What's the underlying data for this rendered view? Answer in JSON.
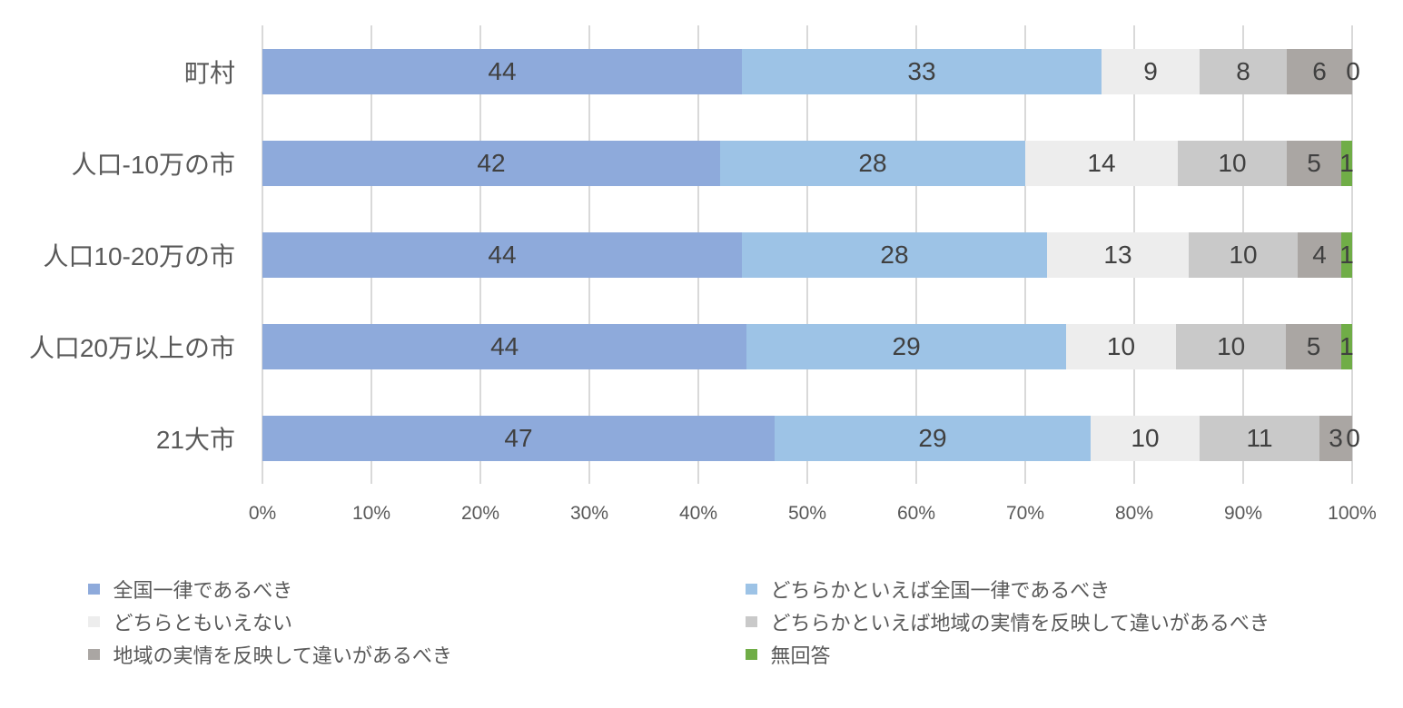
{
  "chart_data": {
    "type": "bar",
    "stacked": true,
    "orientation": "horizontal",
    "unit": "%",
    "categories": [
      "町村",
      "人口-10万の市",
      "人口10-20万の市",
      "人口20万以上の市",
      "21大市"
    ],
    "series": [
      {
        "name": "全国一律であるべき",
        "color": "#8eaadb",
        "values": [
          44,
          42,
          44,
          44,
          47
        ]
      },
      {
        "name": "どちらかといえば全国一律であるべき",
        "color": "#9dc3e6",
        "values": [
          33,
          28,
          28,
          29,
          29
        ]
      },
      {
        "name": "どちらともいえない",
        "color": "#ededed",
        "values": [
          9,
          14,
          13,
          10,
          10
        ]
      },
      {
        "name": "どちらかといえば地域の実情を反映して違いがあるべき",
        "color": "#c9c9c9",
        "values": [
          8,
          10,
          10,
          10,
          11
        ]
      },
      {
        "name": "地域の実情を反映して違いがあるべき",
        "color": "#aaa6a3",
        "values": [
          6,
          5,
          4,
          5,
          3
        ]
      },
      {
        "name": "無回答",
        "color": "#70ad47",
        "values": [
          0,
          1,
          1,
          1,
          0
        ]
      }
    ],
    "x_ticks": [
      "0%",
      "10%",
      "20%",
      "30%",
      "40%",
      "50%",
      "60%",
      "70%",
      "80%",
      "90%",
      "100%"
    ],
    "xlim": [
      0,
      100
    ],
    "grid": true,
    "legend_position": "bottom",
    "value_label_color": "#404040",
    "axis_text_color": "#595959",
    "gridline_color": "#d9d9d9"
  }
}
